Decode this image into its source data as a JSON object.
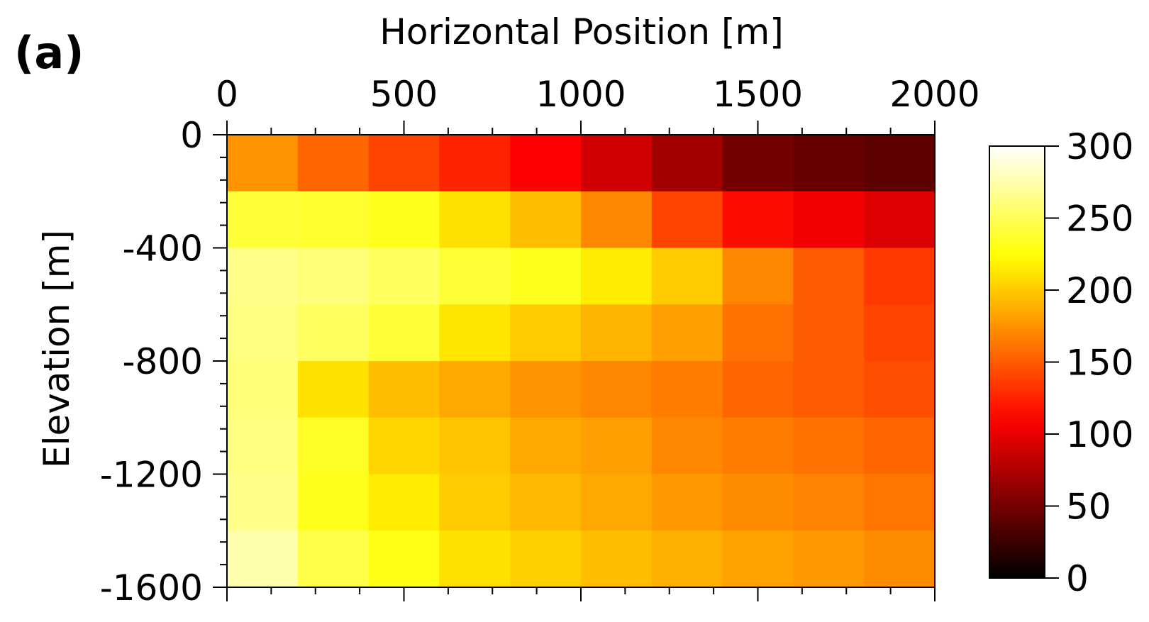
{
  "chart_data": {
    "type": "heatmap",
    "panel_label": "(a)",
    "xlabel": "Horizontal Position [m]",
    "ylabel": "Elevation [m]",
    "x_axis_position": "top",
    "xlim": [
      0,
      2000
    ],
    "ylim": [
      -1600,
      0
    ],
    "x_ticks": [
      0,
      500,
      1000,
      1500,
      2000
    ],
    "x_tick_labels": [
      "0",
      "500",
      "1000",
      "1500",
      "2000"
    ],
    "y_ticks": [
      0,
      -400,
      -800,
      -1200,
      -1600
    ],
    "y_tick_labels": [
      "0",
      "-400",
      "-800",
      "-1200",
      "-1600"
    ],
    "colormap": "hot",
    "colorbar": {
      "range": [
        0,
        300
      ],
      "ticks": [
        0,
        50,
        100,
        150,
        200,
        250,
        300
      ],
      "tick_labels": [
        "0",
        "50",
        "100",
        "150",
        "200",
        "250",
        "300"
      ],
      "placement": "right"
    },
    "x_edges": [
      0,
      200,
      400,
      600,
      800,
      1000,
      1200,
      1400,
      1600,
      1800,
      2000
    ],
    "y_edges": [
      0,
      -200,
      -400,
      -600,
      -800,
      -1000,
      -1200,
      -1400,
      -1600
    ],
    "values": [
      [
        175,
        155,
        140,
        125,
        110,
        90,
        70,
        50,
        45,
        40
      ],
      [
        240,
        238,
        232,
        210,
        195,
        170,
        140,
        115,
        105,
        95
      ],
      [
        265,
        260,
        252,
        240,
        232,
        215,
        200,
        170,
        150,
        135
      ],
      [
        262,
        252,
        240,
        212,
        200,
        190,
        180,
        160,
        150,
        140
      ],
      [
        260,
        210,
        195,
        185,
        175,
        170,
        165,
        155,
        150,
        145
      ],
      [
        262,
        235,
        205,
        198,
        185,
        180,
        170,
        165,
        160,
        155
      ],
      [
        265,
        232,
        215,
        200,
        192,
        185,
        178,
        172,
        168,
        162
      ],
      [
        275,
        245,
        230,
        210,
        202,
        195,
        188,
        182,
        178,
        172
      ]
    ]
  }
}
